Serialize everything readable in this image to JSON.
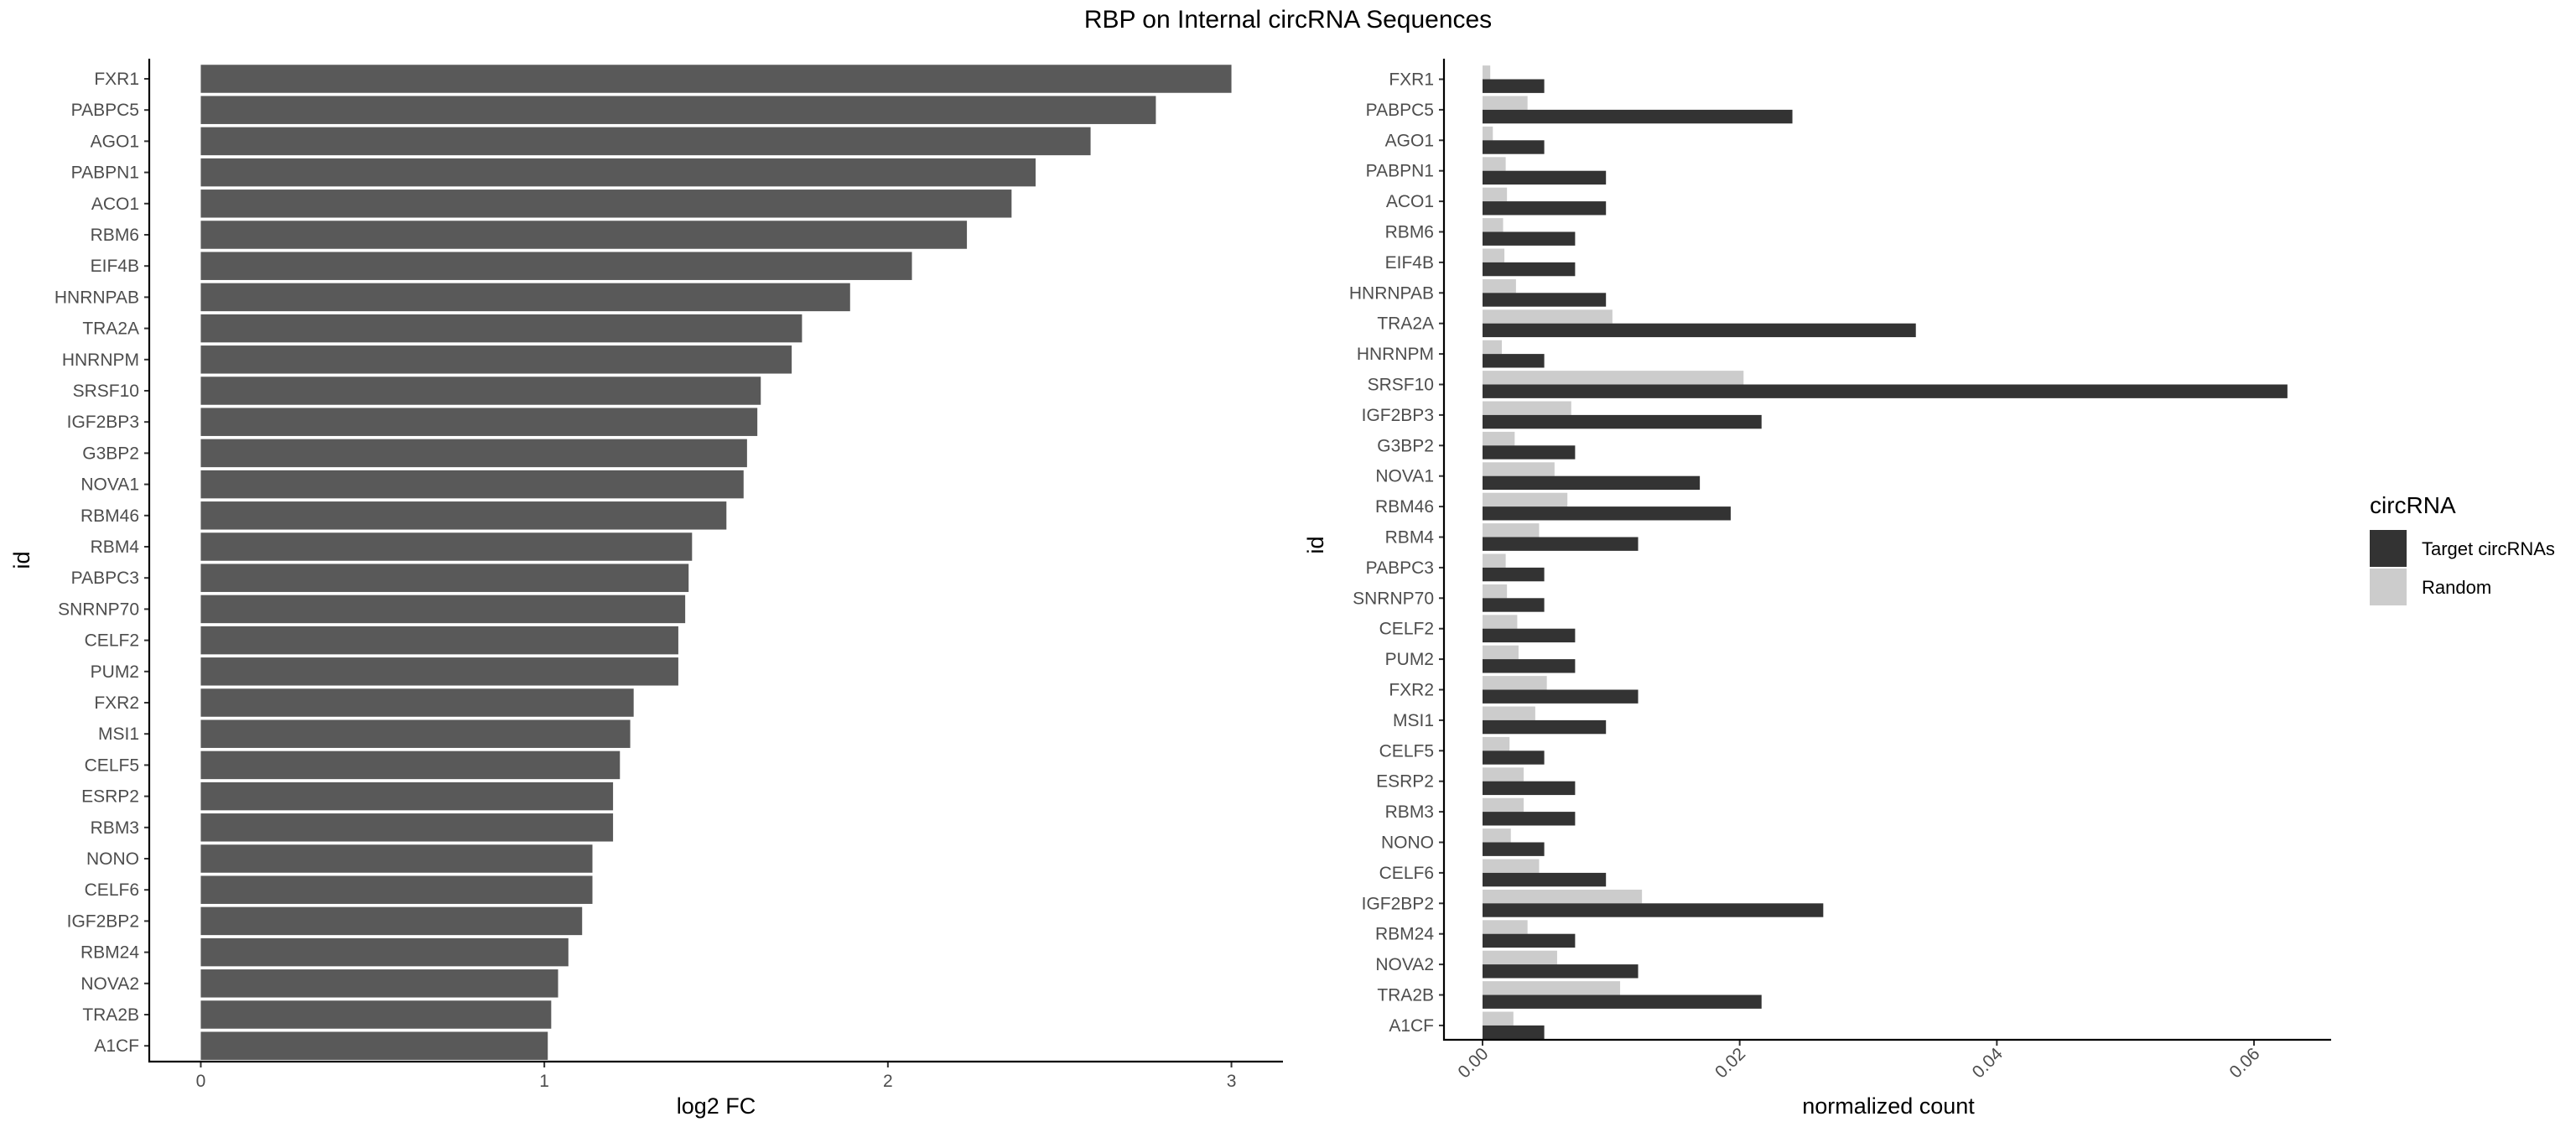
{
  "title": "RBP on Internal circRNA Sequences",
  "colors": {
    "left_bar": "#595959",
    "target": "#333333",
    "random": "#cccccc"
  },
  "chart_data": [
    {
      "type": "bar",
      "orientation": "horizontal",
      "xlabel": "log2 FC",
      "ylabel": "id",
      "xlim": [
        -0.15,
        3.15
      ],
      "xticks": [
        "0",
        "1",
        "2",
        "3"
      ],
      "categories": [
        "FXR1",
        "PABPC5",
        "AGO1",
        "PABPN1",
        "ACO1",
        "RBM6",
        "EIF4B",
        "HNRNPAB",
        "TRA2A",
        "HNRNPM",
        "SRSF10",
        "IGF2BP3",
        "G3BP2",
        "NOVA1",
        "RBM46",
        "RBM4",
        "PABPC3",
        "SNRNP70",
        "CELF2",
        "PUM2",
        "FXR2",
        "MSI1",
        "CELF5",
        "ESRP2",
        "RBM3",
        "NONO",
        "CELF6",
        "IGF2BP2",
        "RBM24",
        "NOVA2",
        "TRA2B",
        "A1CF"
      ],
      "values": [
        3.0,
        2.78,
        2.59,
        2.43,
        2.36,
        2.23,
        2.07,
        1.89,
        1.75,
        1.72,
        1.63,
        1.62,
        1.59,
        1.58,
        1.53,
        1.43,
        1.42,
        1.41,
        1.39,
        1.39,
        1.26,
        1.25,
        1.22,
        1.2,
        1.2,
        1.14,
        1.14,
        1.11,
        1.07,
        1.04,
        1.02,
        1.01
      ]
    },
    {
      "type": "bar",
      "orientation": "horizontal",
      "xlabel": "normalized count",
      "ylabel": "id",
      "xlim": [
        -0.003,
        0.066
      ],
      "xticks": [
        "0.00",
        "0.02",
        "0.04",
        "0.06"
      ],
      "categories": [
        "FXR1",
        "PABPC5",
        "AGO1",
        "PABPN1",
        "ACO1",
        "RBM6",
        "EIF4B",
        "HNRNPAB",
        "TRA2A",
        "HNRNPM",
        "SRSF10",
        "IGF2BP3",
        "G3BP2",
        "NOVA1",
        "RBM46",
        "RBM4",
        "PABPC3",
        "SNRNP70",
        "CELF2",
        "PUM2",
        "FXR2",
        "MSI1",
        "CELF5",
        "ESRP2",
        "RBM3",
        "NONO",
        "CELF6",
        "IGF2BP2",
        "RBM24",
        "NOVA2",
        "TRA2B",
        "A1CF"
      ],
      "legend_title": "circRNA",
      "legend_position": "right",
      "series": [
        {
          "name": "Target circRNAs",
          "values": [
            0.0048,
            0.0241,
            0.0048,
            0.0096,
            0.0096,
            0.0072,
            0.0072,
            0.0096,
            0.0337,
            0.0048,
            0.0626,
            0.0217,
            0.0072,
            0.0169,
            0.0193,
            0.0121,
            0.0048,
            0.0048,
            0.0072,
            0.0072,
            0.0121,
            0.0096,
            0.0048,
            0.0072,
            0.0072,
            0.0048,
            0.0096,
            0.0265,
            0.0072,
            0.0121,
            0.0217,
            0.0048
          ]
        },
        {
          "name": "Random",
          "values": [
            0.0006,
            0.0035,
            0.0008,
            0.0018,
            0.0019,
            0.0016,
            0.0017,
            0.0026,
            0.0101,
            0.0015,
            0.0203,
            0.0069,
            0.0025,
            0.0056,
            0.0066,
            0.0044,
            0.0018,
            0.0019,
            0.0027,
            0.0028,
            0.005,
            0.0041,
            0.0021,
            0.0032,
            0.0032,
            0.0022,
            0.0044,
            0.0124,
            0.0035,
            0.0058,
            0.0107,
            0.0024
          ]
        }
      ]
    }
  ]
}
